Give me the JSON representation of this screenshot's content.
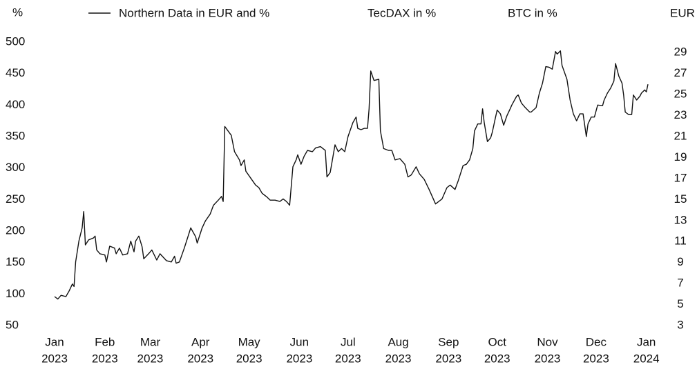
{
  "chart_data": {
    "type": "line",
    "y_label": "%",
    "y2_label": "EUR",
    "series": [
      {
        "name": "Northern Data in EUR and %",
        "color": "#111111",
        "values": [
          96,
          92,
          98,
          96,
          105,
          116,
          112,
          151,
          184,
          205,
          231,
          178,
          186,
          189,
          192,
          170,
          164,
          162,
          151,
          176,
          173,
          164,
          173,
          162,
          164,
          184,
          167,
          184,
          192,
          175,
          156,
          164,
          170,
          154,
          164,
          153,
          151,
          160,
          149,
          151,
          173,
          189,
          205,
          191,
          181,
          205,
          216,
          227,
          241,
          249,
          255,
          247,
          366,
          359,
          352,
          326,
          313,
          304,
          313,
          295,
          284,
          273,
          269,
          260,
          254,
          249,
          249,
          247,
          251,
          247,
          241,
          302,
          313,
          321,
          306,
          319,
          328,
          326,
          332,
          334,
          328,
          286,
          293,
          337,
          326,
          331,
          326,
          350,
          372,
          381,
          363,
          361,
          363,
          363,
          394,
          454,
          439,
          441,
          359,
          331,
          328,
          328,
          313,
          315,
          306,
          286,
          289,
          302,
          291,
          282,
          266,
          243,
          247,
          251,
          269,
          273,
          266,
          280,
          304,
          306,
          313,
          331,
          359,
          370,
          370,
          394,
          372,
          342,
          348,
          357,
          381,
          392,
          386,
          368,
          383,
          394,
          400,
          414,
          416,
          403,
          397,
          389,
          389,
          396,
          419,
          435,
          461,
          460,
          457,
          485,
          481,
          486,
          463,
          441,
          408,
          386,
          375,
          386,
          386,
          350,
          370,
          381,
          381,
          400,
          399,
          408,
          419,
          427,
          438,
          466,
          446,
          435,
          416,
          389,
          385,
          385,
          416,
          408,
          414,
          419,
          424,
          421,
          433
        ]
      }
    ],
    "legend_extra": [
      "TecDAX in %",
      "BTC in %"
    ],
    "x": [
      0,
      2,
      4,
      7,
      9,
      11,
      12,
      13,
      15,
      17,
      18,
      19,
      21,
      24,
      25,
      26,
      28,
      31,
      32,
      34,
      37,
      38,
      40,
      42,
      45,
      47,
      49,
      50,
      52,
      54,
      55,
      58,
      60,
      63,
      65,
      69,
      72,
      74,
      75,
      77,
      80,
      82,
      84,
      87,
      88,
      91,
      93,
      96,
      98,
      101,
      103,
      104,
      105,
      107,
      109,
      111,
      114,
      115,
      117,
      118,
      121,
      124,
      126,
      128,
      131,
      133,
      136,
      139,
      141,
      143,
      145,
      147,
      149,
      150,
      152,
      154,
      156,
      159,
      161,
      164,
      167,
      168,
      170,
      173,
      175,
      177,
      179,
      181,
      184,
      186,
      187,
      189,
      191,
      193,
      194,
      195,
      197,
      200,
      201,
      203,
      206,
      208,
      210,
      213,
      216,
      218,
      220,
      223,
      225,
      228,
      231,
      235,
      237,
      239,
      242,
      244,
      247,
      249,
      252,
      254,
      256,
      258,
      259,
      261,
      263,
      264,
      265,
      267,
      269,
      270,
      272,
      273,
      275,
      277,
      279,
      281,
      282,
      285,
      286,
      288,
      290,
      293,
      294,
      297,
      299,
      301,
      303,
      305,
      307,
      309,
      310,
      312,
      313,
      316,
      318,
      320,
      322,
      324,
      326,
      328,
      329,
      331,
      333,
      335,
      338,
      339,
      341,
      343,
      345,
      346,
      348,
      350,
      351,
      352,
      354,
      356,
      357,
      359,
      361,
      362,
      364,
      365,
      366
    ],
    "xlim": [
      0,
      366
    ],
    "xticks": [
      {
        "value": 0,
        "label": "Jan"
      },
      {
        "value": 31,
        "label": "Feb"
      },
      {
        "value": 59,
        "label": "Mar"
      },
      {
        "value": 90,
        "label": "Apr"
      },
      {
        "value": 120,
        "label": "May"
      },
      {
        "value": 151,
        "label": "Jun"
      },
      {
        "value": 181,
        "label": "Jul"
      },
      {
        "value": 212,
        "label": "Aug"
      },
      {
        "value": 243,
        "label": "Sep"
      },
      {
        "value": 273,
        "label": "Oct"
      },
      {
        "value": 304,
        "label": "Nov"
      },
      {
        "value": 334,
        "label": "Dec"
      },
      {
        "value": 365,
        "label": "Jan"
      }
    ],
    "xtick_years": [
      "2023",
      "2023",
      "2023",
      "2023",
      "2023",
      "2023",
      "2023",
      "2023",
      "2023",
      "2023",
      "2023",
      "2023",
      "2024"
    ],
    "ylim": [
      50,
      500
    ],
    "yticks": [
      50,
      100,
      150,
      200,
      250,
      300,
      350,
      400,
      450,
      500
    ],
    "y2lim": [
      3,
      30
    ],
    "y2ticks": [
      3,
      5,
      7,
      9,
      11,
      13,
      15,
      17,
      19,
      21,
      23,
      25,
      27,
      29
    ],
    "grid": false
  }
}
